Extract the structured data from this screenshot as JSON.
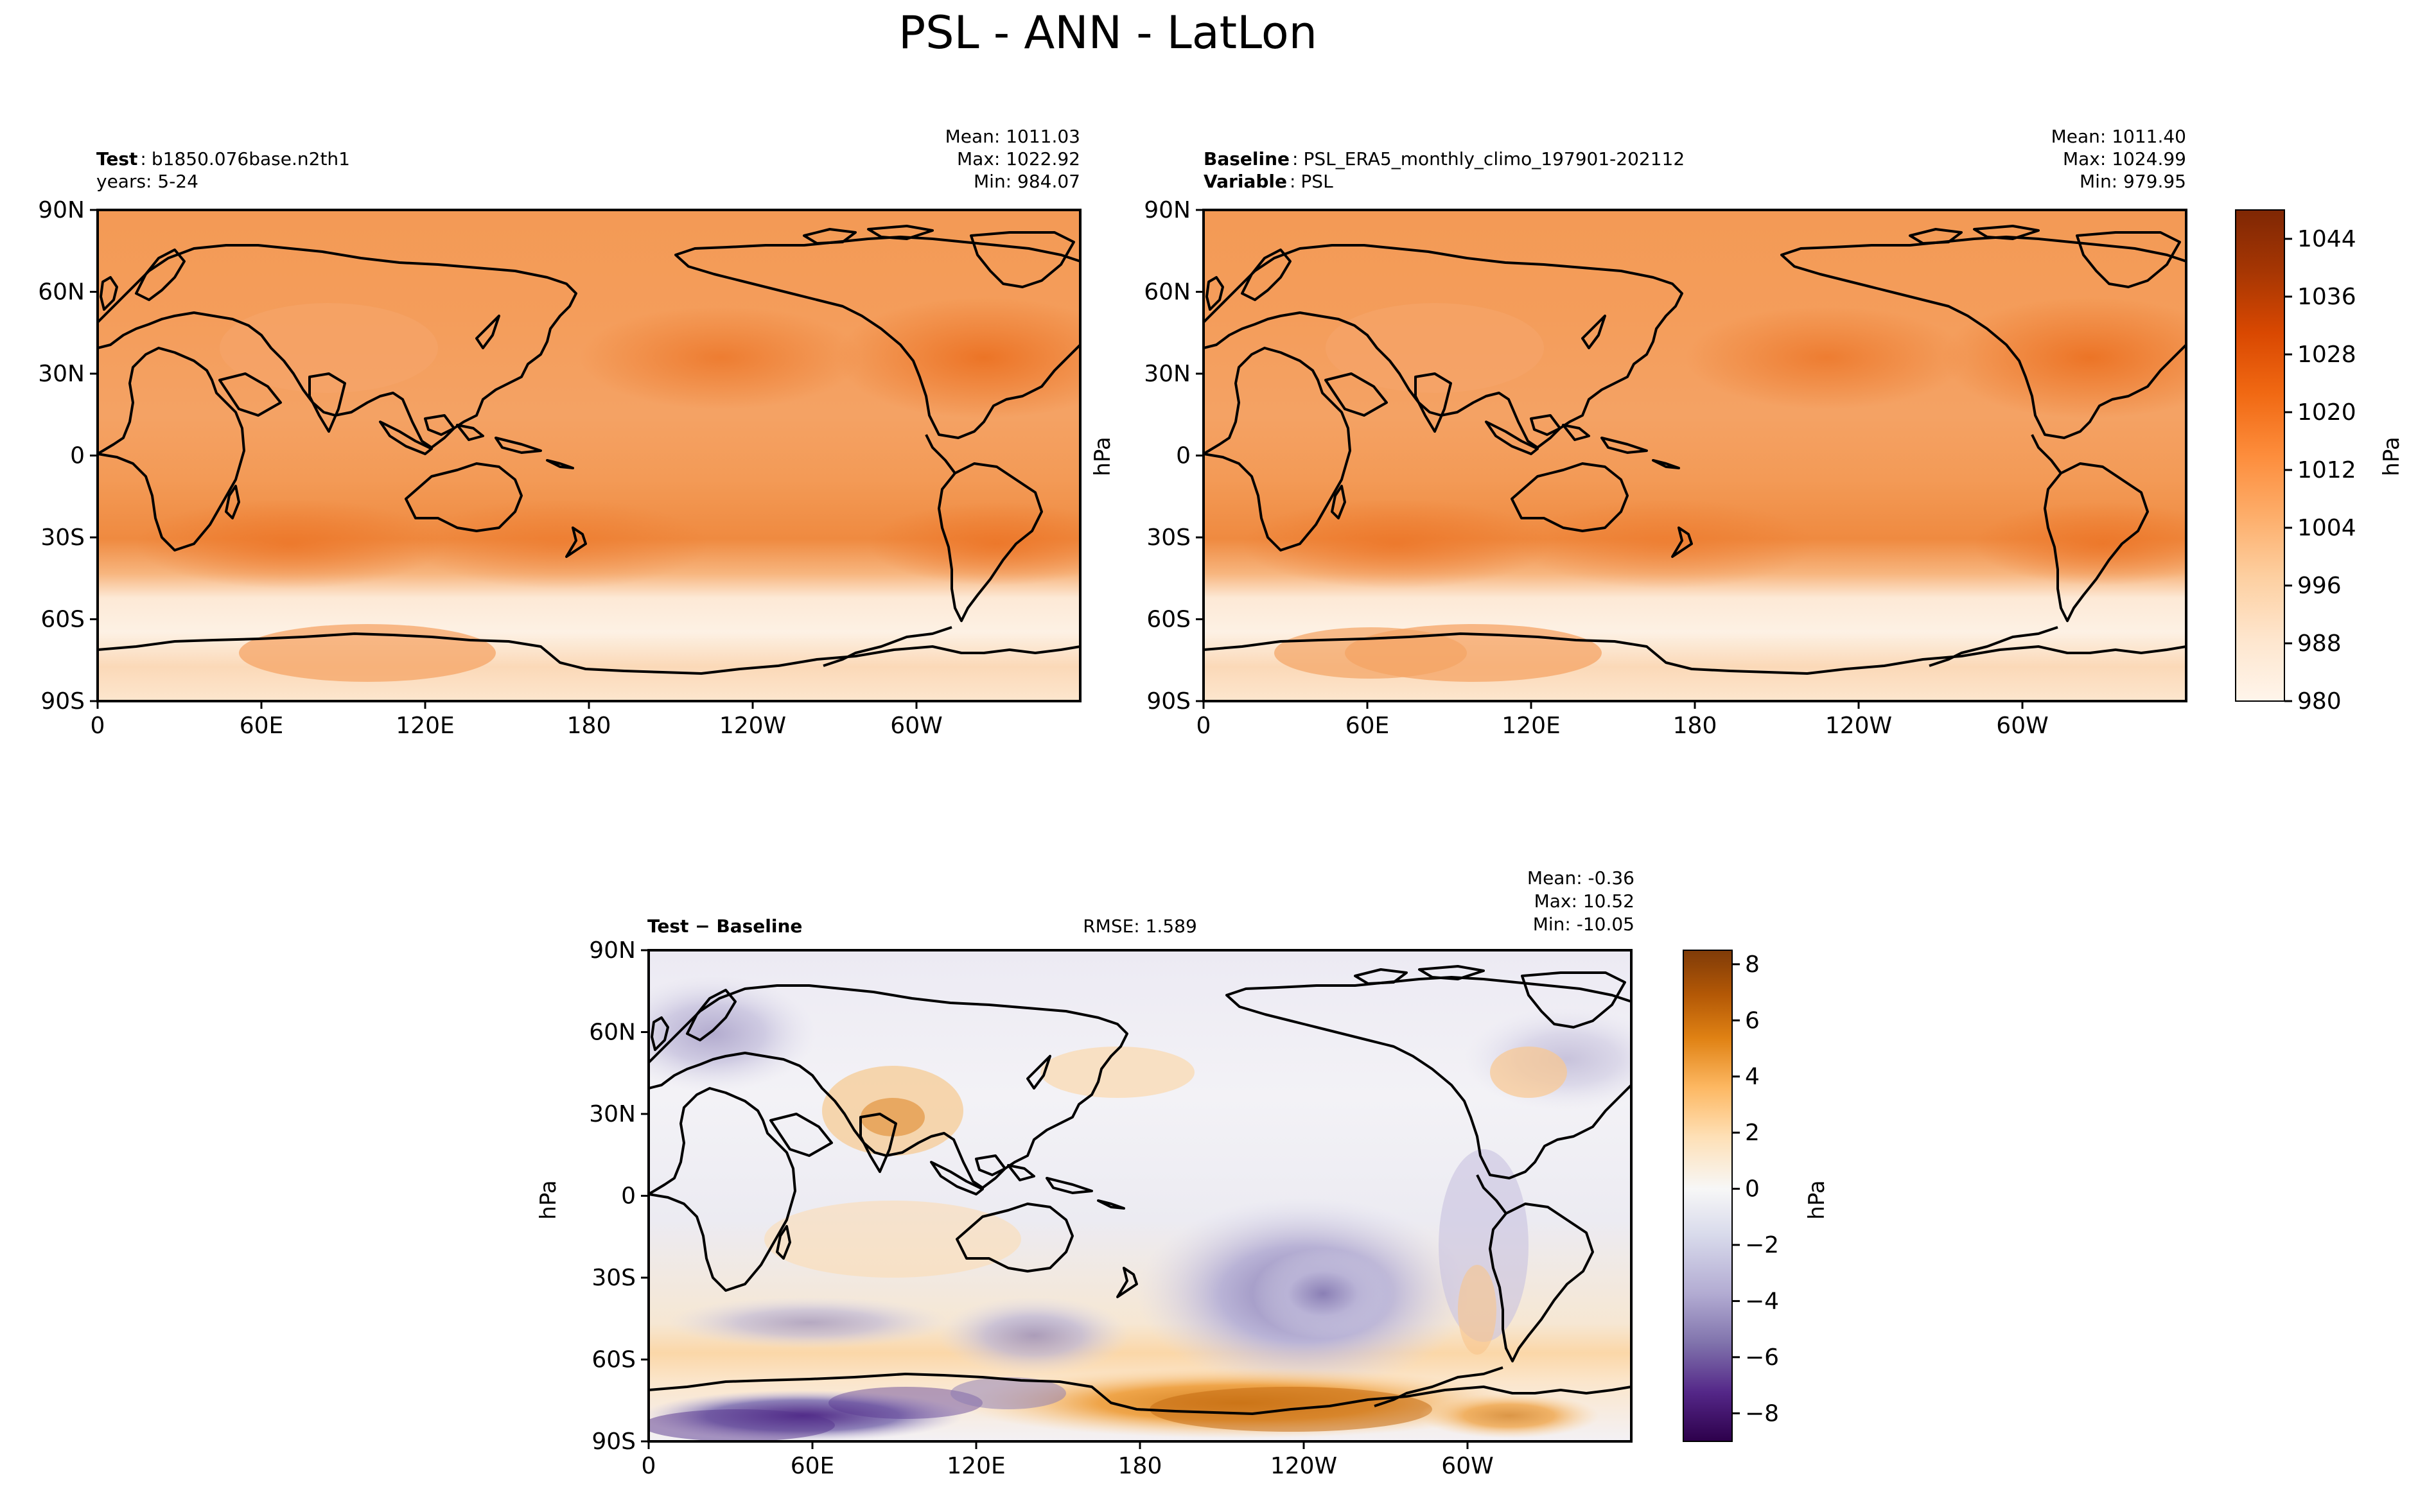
{
  "figure": {
    "title": "PSL - ANN - LatLon"
  },
  "chart_data": [
    {
      "type": "heatmap",
      "panel": "test",
      "label_bold": "Test",
      "label_text": "b1850.076base.n2th1",
      "sub_text": "years: 5-24",
      "stats": {
        "mean": "Mean: 1011.03",
        "max": "Max: 1022.92",
        "min": "Min: 984.07"
      },
      "xticks": [
        "0",
        "60E",
        "120E",
        "180",
        "120W",
        "60W"
      ],
      "yticks": [
        "90N",
        "60N",
        "30N",
        "0",
        "30S",
        "60S",
        "90S"
      ],
      "xlim": [
        0,
        360
      ],
      "ylim": [
        -90,
        90
      ],
      "colormap": "Oranges",
      "value_range_hpa": [
        984.07,
        1022.92
      ]
    },
    {
      "type": "heatmap",
      "panel": "baseline",
      "label_bold": "Baseline",
      "label_text": "PSL_ERA5_monthly_climo_197901-202112",
      "label2_bold": "Variable",
      "label2_text": "PSL",
      "stats": {
        "mean": "Mean: 1011.40",
        "max": "Max: 1024.99",
        "min": "Min: 979.95"
      },
      "ylabel": "hPa",
      "xticks": [
        "0",
        "60E",
        "120E",
        "180",
        "120W",
        "60W"
      ],
      "yticks": [
        "90N",
        "60N",
        "30N",
        "0",
        "30S",
        "60S",
        "90S"
      ],
      "xlim": [
        0,
        360
      ],
      "ylim": [
        -90,
        90
      ],
      "colormap": "Oranges",
      "value_range_hpa": [
        979.95,
        1024.99
      ]
    },
    {
      "type": "heatmap",
      "panel": "difference",
      "label_bold": "Test − Baseline",
      "rmse": "RMSE: 1.589",
      "stats": {
        "mean": "Mean: -0.36",
        "max": "Max: 10.52",
        "min": "Min: -10.05"
      },
      "ylabel": "hPa",
      "xticks": [
        "0",
        "60E",
        "120E",
        "180",
        "120W",
        "60W"
      ],
      "yticks": [
        "90N",
        "60N",
        "30N",
        "0",
        "30S",
        "60S",
        "90S"
      ],
      "xlim": [
        0,
        360
      ],
      "ylim": [
        -90,
        90
      ],
      "colormap": "PuOr_r",
      "value_range_hpa": [
        -10.05,
        10.52
      ]
    }
  ],
  "colorbars": {
    "absolute": {
      "label": "hPa",
      "range": [
        980,
        1048
      ],
      "ticks": [
        "1044",
        "1036",
        "1028",
        "1020",
        "1012",
        "1004",
        "996",
        "988",
        "980"
      ],
      "tick_values": [
        1044,
        1036,
        1028,
        1020,
        1012,
        1004,
        996,
        988,
        980
      ],
      "colors": [
        "#fff5eb",
        "#fee6ce",
        "#fdd0a2",
        "#fdae6b",
        "#fd8d3c",
        "#f16913",
        "#d94801",
        "#a63603",
        "#7f2704"
      ]
    },
    "difference": {
      "label": "hPa",
      "range": [
        -9,
        8.5
      ],
      "ticks": [
        "8",
        "6",
        "4",
        "2",
        "0",
        "−2",
        "−4",
        "−6",
        "−8"
      ],
      "tick_values": [
        8,
        6,
        4,
        2,
        0,
        -2,
        -4,
        -6,
        -8
      ],
      "colors": [
        "#2d004b",
        "#542788",
        "#8073ac",
        "#b2abd2",
        "#d8daeb",
        "#f7f7f7",
        "#fee0b6",
        "#fdb863",
        "#e08214",
        "#b35806",
        "#7f3b08"
      ]
    }
  }
}
